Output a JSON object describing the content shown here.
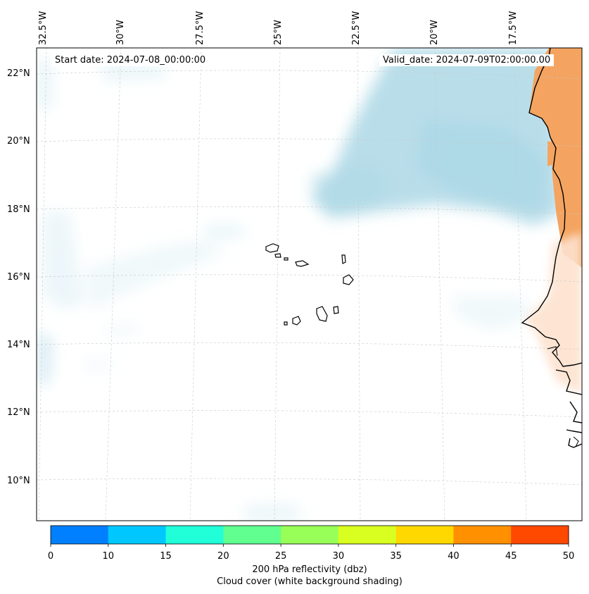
{
  "map": {
    "start_date": "Start date: 2024-07-08_00:00:00",
    "valid_date": "Valid_date: 2024-07-09T02:00:00.00",
    "lon_labels": [
      "32.5°W",
      "30°W",
      "27.5°W",
      "25°W",
      "22.5°W",
      "20°W",
      "17.5°W"
    ],
    "lat_labels": [
      "22°N",
      "20°N",
      "18°N",
      "16°N",
      "14°N",
      "12°N",
      "10°N"
    ],
    "extent": {
      "lon_min": -32.9,
      "lon_max": -16.0,
      "lat_min": 8.8,
      "lat_max": 22.8
    }
  },
  "colorbar": {
    "ticks": [
      "0",
      "10",
      "15",
      "20",
      "25",
      "30",
      "35",
      "40",
      "45",
      "50"
    ],
    "colors": [
      "#0080ff",
      "#00c8ff",
      "#20ffd8",
      "#60ff90",
      "#98ff58",
      "#d8ff20",
      "#ffd800",
      "#ff9000",
      "#ff4800"
    ],
    "label": "200 hPa reflectivity (dbz)",
    "sublabel": "Cloud cover (white background shading)"
  },
  "colors": {
    "cloud": "#add8e6",
    "land_dust": "#f4a460",
    "coast": "#000000",
    "grid": "#c8c8c8"
  }
}
